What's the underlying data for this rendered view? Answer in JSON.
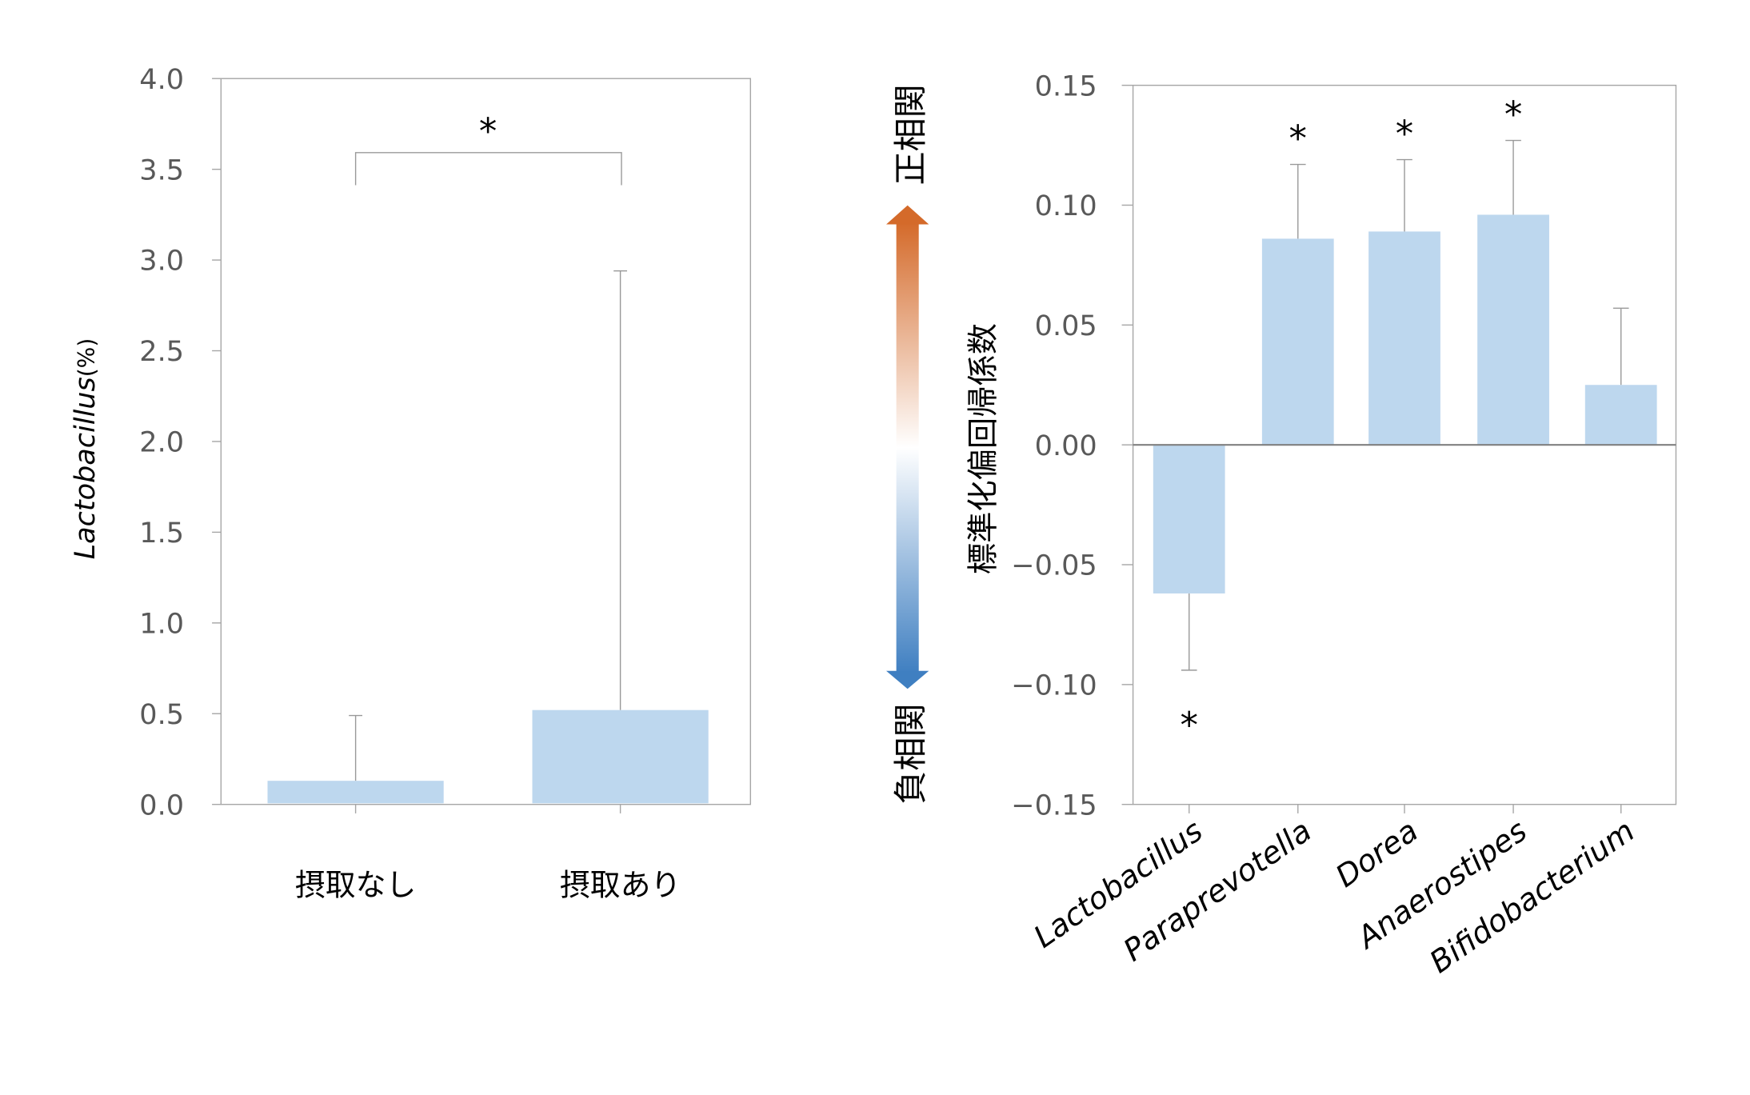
{
  "colors": {
    "bar": "#bdd7ee",
    "axis": "#a6a6a6",
    "zero_line": "#808080",
    "arrow_top": "#d46a2a",
    "arrow_bottom": "#3f7fc1"
  },
  "chart_data": [
    {
      "type": "bar",
      "ylabel_italic": "Lactobacillus",
      "ylabel_unit": "(%)",
      "ylim": [
        0,
        4.0
      ],
      "yticks": [
        "0.0",
        "0.5",
        "1.0",
        "1.5",
        "2.0",
        "2.5",
        "3.0",
        "3.5",
        "4.0"
      ],
      "categories": [
        "摂取なし",
        "摂取あり"
      ],
      "values": [
        0.13,
        0.52
      ],
      "error_upper": [
        0.49,
        2.94
      ],
      "significance": {
        "between": [
          0,
          1
        ],
        "mark": "*"
      },
      "grid": false
    },
    {
      "type": "bar",
      "ylabel": "標準化偏回帰係数",
      "ylim": [
        -0.15,
        0.15
      ],
      "yticks": [
        "−0.15",
        "−0.10",
        "−0.05",
        "0.00",
        "0.05",
        "0.10",
        "0.15"
      ],
      "categories": [
        "Lactobacillus",
        "Paraprevotella",
        "Dorea",
        "Anaerostipes",
        "Bifidobacterium"
      ],
      "values": [
        -0.062,
        0.086,
        0.089,
        0.096,
        0.025
      ],
      "error_end": [
        -0.094,
        0.117,
        0.119,
        0.127,
        0.057
      ],
      "significance_marks": [
        "*",
        "*",
        "*",
        "*",
        ""
      ],
      "grid": false
    }
  ],
  "arrow_legend": {
    "positive_label": "正相関",
    "negative_label": "負相関"
  }
}
